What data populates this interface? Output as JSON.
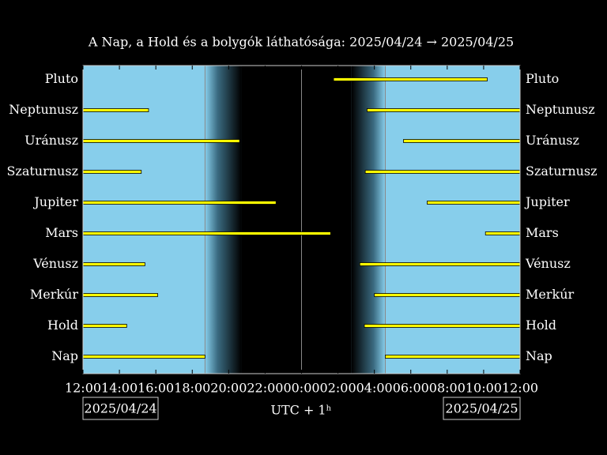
{
  "chart_data": {
    "type": "timeline",
    "title": "A Nap, a Hold és a bolygók láthatósága: 2025/04/24 → 2025/04/25",
    "xlabel": "UTC + 1ʰ",
    "dates": [
      "2025/04/24",
      "2025/04/25"
    ],
    "categories": [
      "Pluto",
      "Neptunusz",
      "Uránusz",
      "Szaturnusz",
      "Jupiter",
      "Mars",
      "Vénusz",
      "Merkúr",
      "Hold",
      "Nap"
    ],
    "segments": [
      [
        [
          25.76,
          34.2
        ]
      ],
      [
        [
          12,
          15.6
        ],
        [
          27.6,
          36
        ]
      ],
      [
        [
          12,
          20.6
        ],
        [
          29.6,
          36
        ]
      ],
      [
        [
          12,
          15.2
        ],
        [
          27.5,
          36
        ]
      ],
      [
        [
          12,
          22.6
        ],
        [
          30.9,
          36
        ]
      ],
      [
        [
          12,
          25.6
        ],
        [
          34.1,
          36
        ]
      ],
      [
        [
          12,
          15.4
        ],
        [
          27.2,
          36
        ]
      ],
      [
        [
          12,
          16.1
        ],
        [
          28.0,
          36
        ]
      ],
      [
        [
          12,
          14.4
        ],
        [
          27.45,
          36
        ]
      ],
      [
        [
          12,
          18.7
        ],
        [
          28.6,
          36
        ]
      ]
    ],
    "color": "#ffff00",
    "day_color": "#87ceeb",
    "dark": [
      20.7,
      26.75
    ],
    "midnight": 24,
    "xlim": [
      12,
      36
    ],
    "xticks": [
      {
        "value": 12,
        "label": "12:00"
      },
      {
        "value": 14,
        "label": "14:00"
      },
      {
        "value": 16,
        "label": "16:00"
      },
      {
        "value": 18,
        "label": "18:00"
      },
      {
        "value": 20,
        "label": "20:00"
      },
      {
        "value": 22,
        "label": "22:00"
      },
      {
        "value": 24,
        "label": "00:00"
      },
      {
        "value": 26,
        "label": "02:00"
      },
      {
        "value": 28,
        "label": "04:00"
      },
      {
        "value": 30,
        "label": "06:00"
      },
      {
        "value": 32,
        "label": "08:00"
      },
      {
        "value": 34,
        "label": "10:00"
      },
      {
        "value": 36,
        "label": "12:00"
      }
    ]
  }
}
